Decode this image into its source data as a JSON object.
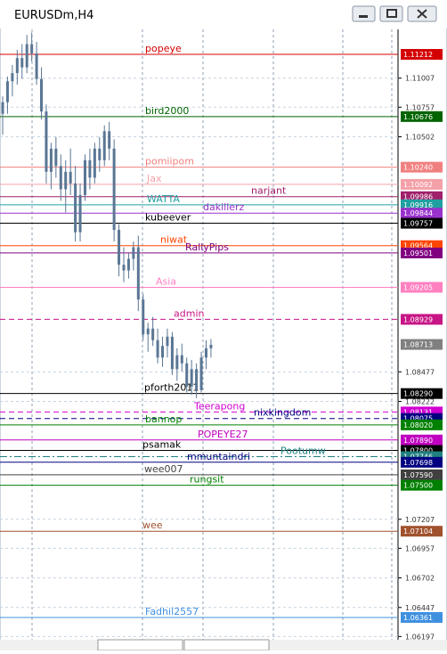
{
  "window": {
    "title": "EURUSDm,H4"
  },
  "chart": {
    "candle_color": "#5a7694",
    "candles": [
      [
        1.107,
        1.1085,
        1.1052,
        1.108
      ],
      [
        1.108,
        1.1102,
        1.107,
        1.1098
      ],
      [
        1.1098,
        1.1112,
        1.1085,
        1.1105
      ],
      [
        1.1105,
        1.1125,
        1.1095,
        1.1118
      ],
      [
        1.1118,
        1.113,
        1.11,
        1.111
      ],
      [
        1.111,
        1.1138,
        1.1105,
        1.113
      ],
      [
        1.113,
        1.114,
        1.1115,
        1.1122
      ],
      [
        1.1122,
        1.1132,
        1.1095,
        1.11
      ],
      [
        1.11,
        1.111,
        1.1065,
        1.1072
      ],
      [
        1.1072,
        1.1078,
        1.101,
        1.102
      ],
      [
        1.102,
        1.1045,
        1.1005,
        1.104
      ],
      [
        1.104,
        1.105,
        1.1015,
        1.1025
      ],
      [
        1.1025,
        1.1035,
        1.0995,
        1.1005
      ],
      [
        1.1005,
        1.103,
        1.0985,
        1.102
      ],
      [
        1.102,
        1.104,
        1.1,
        1.101
      ],
      [
        1.101,
        1.1025,
        1.096,
        1.0968
      ],
      [
        1.0968,
        1.101,
        1.096,
        1.1
      ],
      [
        1.1,
        1.1035,
        1.0995,
        1.103
      ],
      [
        1.103,
        1.104,
        1.1005,
        1.1015
      ],
      [
        1.1015,
        1.1045,
        1.101,
        1.104
      ],
      [
        1.104,
        1.105,
        1.102,
        1.103
      ],
      [
        1.103,
        1.106,
        1.1025,
        1.1055
      ],
      [
        1.1055,
        1.1063,
        1.103,
        1.104
      ],
      [
        1.104,
        1.1048,
        1.096,
        1.097
      ],
      [
        1.097,
        1.0975,
        1.093,
        1.094
      ],
      [
        1.094,
        1.0955,
        1.0925,
        1.0935
      ],
      [
        1.0935,
        1.095,
        1.0928,
        1.0945
      ],
      [
        1.0945,
        1.096,
        1.0935,
        1.0955
      ],
      [
        1.0955,
        1.0965,
        1.09,
        1.091
      ],
      [
        1.091,
        1.0915,
        1.0875,
        1.088
      ],
      [
        1.088,
        1.089,
        1.0865,
        1.0885
      ],
      [
        1.0885,
        1.0895,
        1.087,
        1.0875
      ],
      [
        1.0875,
        1.0885,
        1.0855,
        1.086
      ],
      [
        1.086,
        1.0878,
        1.0852,
        1.087
      ],
      [
        1.087,
        1.0885,
        1.086,
        1.0878
      ],
      [
        1.0878,
        1.0882,
        1.0845,
        1.085
      ],
      [
        1.085,
        1.0868,
        1.084,
        1.0862
      ],
      [
        1.0862,
        1.0872,
        1.0848,
        1.0855
      ],
      [
        1.0855,
        1.086,
        1.083,
        1.0835
      ],
      [
        1.0835,
        1.0858,
        1.0828,
        1.085
      ],
      [
        1.085,
        1.0855,
        1.0825,
        1.0832
      ],
      [
        1.0832,
        1.0865,
        1.083,
        1.086
      ],
      [
        1.086,
        1.0875,
        1.085,
        1.0868
      ],
      [
        1.0868,
        1.0876,
        1.086,
        1.0871
      ]
    ],
    "price_ticks": [
      {
        "value": 1.11007,
        "label": "1.11007"
      },
      {
        "value": 1.10757,
        "label": "1.10757"
      },
      {
        "value": 1.10502,
        "label": "1.10502"
      },
      {
        "value": 1.08477,
        "label": "1.08477"
      },
      {
        "value": 1.08222,
        "label": "1.08222"
      },
      {
        "value": 1.07207,
        "label": "1.07207"
      },
      {
        "value": 1.06957,
        "label": "1.06957"
      },
      {
        "value": 1.06702,
        "label": "1.06702"
      },
      {
        "value": 1.06447,
        "label": "1.06447"
      },
      {
        "value": 1.06197,
        "label": "1.06197"
      }
    ],
    "current_price": {
      "value": 1.08713,
      "label": "1.08713"
    },
    "lines": [
      {
        "name": "popeye",
        "price": {
          "value": 1.11212,
          "label": "1.11212"
        },
        "color": "#d40000",
        "style": "solid"
      },
      {
        "name": "bird2000",
        "price": {
          "value": 1.10676,
          "label": "1.10676"
        },
        "color": "#006400",
        "style": "solid"
      },
      {
        "name": "pomiipom",
        "price": {
          "value": 1.1024,
          "label": "1.10240"
        },
        "color": "#f08080",
        "style": "solid"
      },
      {
        "name": "Jax",
        "price": {
          "value": 1.10092,
          "label": "1.10092"
        },
        "color": "#f4a0a8",
        "style": "solid"
      },
      {
        "name": "narjant",
        "price": {
          "value": 1.09986,
          "label": "1.09986"
        },
        "color": "#a0206a",
        "style": "solid"
      },
      {
        "name": "WATTA",
        "price": {
          "value": 1.09916,
          "label": "1.09916"
        },
        "color": "#20a0a0",
        "style": "solid"
      },
      {
        "name": "dakillerz",
        "price": {
          "value": 1.09844,
          "label": "1.09844"
        },
        "color": "#9932cc",
        "style": "solid"
      },
      {
        "name": "kubeever",
        "price": {
          "value": 1.09757,
          "label": "1.09757"
        },
        "color": "#000000",
        "style": "solid"
      },
      {
        "name": "niwat",
        "price": {
          "value": 1.09564,
          "label": "1.09564"
        },
        "color": "#ff4500",
        "style": "solid"
      },
      {
        "name": "RallyPips",
        "price": {
          "value": 1.09501,
          "label": "1.09501"
        },
        "color": "#800080",
        "style": "solid"
      },
      {
        "name": "Asia",
        "price": {
          "value": 1.09205,
          "label": "1.09205"
        },
        "color": "#ff80c0",
        "style": "solid"
      },
      {
        "name": "admin",
        "price": {
          "value": 1.08929,
          "label": "1.08929"
        },
        "color": "#c71585",
        "style": "dash"
      },
      {
        "name": "pforth2011",
        "price": {
          "value": 1.0829,
          "label": "1.08290"
        },
        "color": "#000000",
        "style": "solid"
      },
      {
        "name": "Teerapong",
        "price": {
          "value": 1.08131,
          "label": "1.08131"
        },
        "color": "#d000d0",
        "style": "dash"
      },
      {
        "name": "nixkingdom",
        "price": {
          "value": 1.08075,
          "label": "1.08075"
        },
        "color": "#000080",
        "style": "dash"
      },
      {
        "name": "bannop",
        "price": {
          "value": 1.0802,
          "label": "1.08020"
        },
        "color": "#008000",
        "style": "solid"
      },
      {
        "name": "POPEYE27",
        "price": {
          "value": 1.0789,
          "label": "1.07890"
        },
        "color": "#c000c0",
        "style": "solid"
      },
      {
        "name": "psamak",
        "price": {
          "value": 1.078,
          "label": "1.07800"
        },
        "color": "#000000",
        "style": "solid"
      },
      {
        "name": "Pootumw",
        "price": {
          "value": 1.07746,
          "label": "1.07746"
        },
        "color": "#208080",
        "style": "dashdot"
      },
      {
        "name": "mmuntaindri",
        "price": {
          "value": 1.07698,
          "label": "1.07698"
        },
        "color": "#000080",
        "style": "solid"
      },
      {
        "name": "wee007",
        "price": {
          "value": 1.0759,
          "label": "1.07590"
        },
        "color": "#404040",
        "style": "solid"
      },
      {
        "name": "rungsit",
        "price": {
          "value": 1.075,
          "label": "1.07500"
        },
        "color": "#008000",
        "style": "solid"
      },
      {
        "name": "wee",
        "price": {
          "value": 1.07104,
          "label": "1.07104"
        },
        "color": "#a0522d",
        "style": "solid"
      },
      {
        "name": "Fadhil2557",
        "price": {
          "value": 1.06361,
          "label": "1.06361"
        },
        "color": "#4090e0",
        "style": "solid"
      }
    ]
  }
}
